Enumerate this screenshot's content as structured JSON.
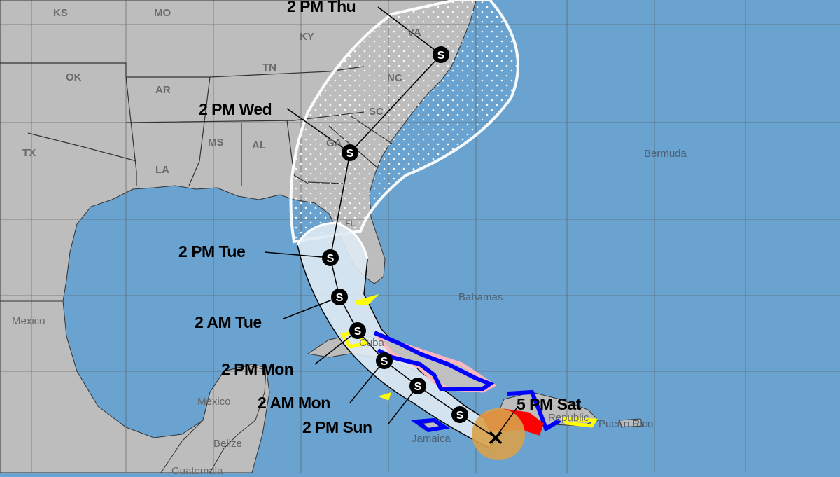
{
  "colors": {
    "water": "#6aa3d0",
    "land": "#bdbdbd",
    "cone_near": "#dfeaf3",
    "cone_outline": "#ffffff",
    "hurricane_warning": "#ff0000",
    "tropical_storm_warning": "#0000ff",
    "hurricane_watch": "#ffb6c1",
    "tropical_storm_watch": "#ffff00",
    "current_wind_field": "#d8a14a"
  },
  "states": [
    "KS",
    "MO",
    "KY",
    "OK",
    "TN",
    "AR",
    "NC",
    "SC",
    "TX",
    "MS",
    "AL",
    "GA",
    "LA",
    "FL",
    "VA"
  ],
  "places": {
    "bermuda": "Bermuda",
    "bahamas": "Bahamas",
    "mexico_west": "Mexico",
    "mexico_yucatan": "Mexico",
    "cuba": "Cuba",
    "jamaica": "Jamaica",
    "belize": "Belize",
    "guatemala": "Guatemala",
    "republic": "Republic",
    "puerto_rico": "Puerto Rico"
  },
  "forecast_points": [
    {
      "time": "5 PM Sat",
      "icon": "current-position-x-icon"
    },
    {
      "time": "",
      "icon": "tropical-storm-s-icon"
    },
    {
      "time": "2 PM Sun",
      "icon": "tropical-storm-s-icon"
    },
    {
      "time": "2 AM Mon",
      "icon": "tropical-storm-s-icon"
    },
    {
      "time": "2 PM Mon",
      "icon": "tropical-storm-s-icon"
    },
    {
      "time": "2 AM Tue",
      "icon": "tropical-storm-s-icon"
    },
    {
      "time": "2 PM Tue",
      "icon": "tropical-storm-s-icon"
    },
    {
      "time": "2 PM Wed",
      "icon": "tropical-storm-s-icon"
    },
    {
      "time": "2 PM Thu",
      "icon": "tropical-storm-s-icon"
    }
  ],
  "storm_symbol": "S"
}
